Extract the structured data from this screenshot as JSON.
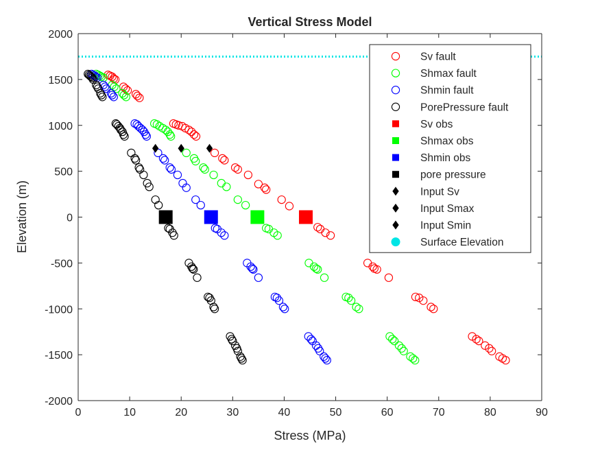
{
  "chart_data": {
    "type": "scatter",
    "title": "Vertical Stress Model",
    "xlabel": "Stress (MPa)",
    "ylabel": "Elevation (m)",
    "xlim": [
      0,
      90
    ],
    "ylim": [
      -2000,
      2000
    ],
    "xticks": [
      0,
      10,
      20,
      30,
      40,
      50,
      60,
      70,
      80,
      90
    ],
    "yticks": [
      -2000,
      -1500,
      -1000,
      -500,
      0,
      500,
      1000,
      1500,
      2000
    ],
    "grid": false,
    "legend_position": "top-right",
    "surface_elevation": 1750,
    "colors": {
      "sv": "#ff0000",
      "shmax": "#00ff00",
      "shmin": "#0000ff",
      "pore": "#000000",
      "surface": "#00e5e5",
      "axis": "#262626"
    },
    "series": [
      {
        "name": "Sv fault",
        "color": "#ff0000",
        "marker": "open-circle",
        "points": [
          [
            5.8,
            1550
          ],
          [
            6.2,
            1540
          ],
          [
            6.6,
            1530
          ],
          [
            6.9,
            1510
          ],
          [
            7.2,
            1500
          ],
          [
            8.8,
            1420
          ],
          [
            9.2,
            1400
          ],
          [
            9.6,
            1380
          ],
          [
            11.2,
            1340
          ],
          [
            11.5,
            1320
          ],
          [
            11.9,
            1300
          ],
          [
            18.5,
            1020
          ],
          [
            19.0,
            1010
          ],
          [
            19.5,
            1000
          ],
          [
            20.2,
            990
          ],
          [
            20.8,
            970
          ],
          [
            21.5,
            950
          ],
          [
            22.0,
            930
          ],
          [
            22.5,
            900
          ],
          [
            22.9,
            880
          ],
          [
            26.5,
            700
          ],
          [
            28.0,
            640
          ],
          [
            28.4,
            620
          ],
          [
            30.5,
            540
          ],
          [
            31.0,
            520
          ],
          [
            33.0,
            460
          ],
          [
            35.0,
            360
          ],
          [
            36.2,
            320
          ],
          [
            36.5,
            300
          ],
          [
            39.5,
            190
          ],
          [
            41.0,
            120
          ],
          [
            46.5,
            -110
          ],
          [
            47.0,
            -130
          ],
          [
            48.0,
            -170
          ],
          [
            49.0,
            -200
          ],
          [
            56.2,
            -500
          ],
          [
            57.2,
            -540
          ],
          [
            57.5,
            -560
          ],
          [
            58.0,
            -570
          ],
          [
            60.3,
            -660
          ],
          [
            65.5,
            -870
          ],
          [
            66.2,
            -880
          ],
          [
            67.0,
            -910
          ],
          [
            68.5,
            -980
          ],
          [
            69.0,
            -1000
          ],
          [
            76.5,
            -1300
          ],
          [
            77.3,
            -1330
          ],
          [
            77.8,
            -1350
          ],
          [
            79.0,
            -1400
          ],
          [
            79.8,
            -1430
          ],
          [
            80.3,
            -1460
          ],
          [
            81.8,
            -1520
          ],
          [
            82.4,
            -1540
          ],
          [
            83.0,
            -1560
          ]
        ]
      },
      {
        "name": "Shmax fault",
        "color": "#00ff00",
        "marker": "open-circle",
        "points": [
          [
            3.5,
            1560
          ],
          [
            3.9,
            1550
          ],
          [
            4.2,
            1540
          ],
          [
            4.5,
            1530
          ],
          [
            4.9,
            1520
          ],
          [
            6.6,
            1440
          ],
          [
            7.0,
            1420
          ],
          [
            7.4,
            1400
          ],
          [
            8.6,
            1350
          ],
          [
            8.9,
            1330
          ],
          [
            9.3,
            1310
          ],
          [
            14.8,
            1020
          ],
          [
            15.3,
            1010
          ],
          [
            15.8,
            990
          ],
          [
            16.4,
            970
          ],
          [
            17.0,
            950
          ],
          [
            17.4,
            930
          ],
          [
            17.8,
            900
          ],
          [
            18.0,
            880
          ],
          [
            21.0,
            700
          ],
          [
            22.5,
            640
          ],
          [
            22.8,
            610
          ],
          [
            24.3,
            540
          ],
          [
            24.6,
            520
          ],
          [
            26.3,
            460
          ],
          [
            27.8,
            370
          ],
          [
            28.8,
            330
          ],
          [
            31.0,
            190
          ],
          [
            32.5,
            130
          ],
          [
            36.5,
            -120
          ],
          [
            37.0,
            -130
          ],
          [
            38.0,
            -170
          ],
          [
            38.7,
            -200
          ],
          [
            44.8,
            -500
          ],
          [
            45.8,
            -540
          ],
          [
            46.2,
            -560
          ],
          [
            46.5,
            -570
          ],
          [
            47.8,
            -660
          ],
          [
            52.0,
            -870
          ],
          [
            52.5,
            -880
          ],
          [
            53.0,
            -910
          ],
          [
            54.0,
            -980
          ],
          [
            54.5,
            -1000
          ],
          [
            60.5,
            -1300
          ],
          [
            61.0,
            -1330
          ],
          [
            61.4,
            -1350
          ],
          [
            62.3,
            -1400
          ],
          [
            62.8,
            -1430
          ],
          [
            63.2,
            -1460
          ],
          [
            64.5,
            -1520
          ],
          [
            65.0,
            -1540
          ],
          [
            65.4,
            -1560
          ]
        ]
      },
      {
        "name": "Shmin fault",
        "color": "#0000ff",
        "marker": "open-circle",
        "points": [
          [
            2.6,
            1560
          ],
          [
            2.9,
            1550
          ],
          [
            3.2,
            1540
          ],
          [
            3.4,
            1530
          ],
          [
            3.7,
            1520
          ],
          [
            4.9,
            1440
          ],
          [
            5.2,
            1420
          ],
          [
            5.5,
            1400
          ],
          [
            6.4,
            1350
          ],
          [
            6.6,
            1330
          ],
          [
            6.9,
            1310
          ],
          [
            11.0,
            1020
          ],
          [
            11.4,
            1010
          ],
          [
            11.7,
            990
          ],
          [
            12.1,
            970
          ],
          [
            12.5,
            950
          ],
          [
            12.8,
            930
          ],
          [
            13.1,
            900
          ],
          [
            13.3,
            880
          ],
          [
            15.5,
            700
          ],
          [
            16.5,
            640
          ],
          [
            16.8,
            620
          ],
          [
            17.8,
            540
          ],
          [
            18.1,
            520
          ],
          [
            19.3,
            460
          ],
          [
            20.3,
            370
          ],
          [
            21.0,
            320
          ],
          [
            22.8,
            190
          ],
          [
            23.8,
            130
          ],
          [
            26.6,
            -120
          ],
          [
            27.0,
            -130
          ],
          [
            27.8,
            -170
          ],
          [
            28.4,
            -200
          ],
          [
            32.8,
            -500
          ],
          [
            33.5,
            -540
          ],
          [
            33.8,
            -560
          ],
          [
            34.0,
            -570
          ],
          [
            35.0,
            -660
          ],
          [
            38.2,
            -870
          ],
          [
            38.6,
            -880
          ],
          [
            39.0,
            -910
          ],
          [
            39.8,
            -980
          ],
          [
            40.1,
            -1000
          ],
          [
            44.7,
            -1300
          ],
          [
            45.2,
            -1330
          ],
          [
            45.5,
            -1350
          ],
          [
            46.2,
            -1400
          ],
          [
            46.6,
            -1430
          ],
          [
            46.9,
            -1460
          ],
          [
            47.7,
            -1520
          ],
          [
            48.0,
            -1540
          ],
          [
            48.3,
            -1560
          ]
        ]
      },
      {
        "name": "PorePressure fault",
        "color": "#000000",
        "marker": "open-circle",
        "points": [
          [
            1.9,
            1560
          ],
          [
            2.1,
            1550
          ],
          [
            2.3,
            1540
          ],
          [
            2.5,
            1530
          ],
          [
            2.7,
            1520
          ],
          [
            2.9,
            1500
          ],
          [
            3.5,
            1440
          ],
          [
            3.7,
            1420
          ],
          [
            3.9,
            1400
          ],
          [
            4.3,
            1350
          ],
          [
            4.5,
            1330
          ],
          [
            4.7,
            1310
          ],
          [
            7.3,
            1020
          ],
          [
            7.5,
            1010
          ],
          [
            7.8,
            990
          ],
          [
            8.1,
            970
          ],
          [
            8.3,
            950
          ],
          [
            8.6,
            930
          ],
          [
            8.8,
            900
          ],
          [
            9.0,
            880
          ],
          [
            10.3,
            700
          ],
          [
            11.0,
            640
          ],
          [
            11.2,
            620
          ],
          [
            11.8,
            540
          ],
          [
            12.0,
            520
          ],
          [
            12.7,
            460
          ],
          [
            13.4,
            370
          ],
          [
            13.8,
            330
          ],
          [
            15.0,
            190
          ],
          [
            15.6,
            130
          ],
          [
            17.5,
            -120
          ],
          [
            17.8,
            -130
          ],
          [
            18.3,
            -170
          ],
          [
            18.6,
            -200
          ],
          [
            21.5,
            -500
          ],
          [
            22.0,
            -540
          ],
          [
            22.2,
            -560
          ],
          [
            22.4,
            -570
          ],
          [
            23.1,
            -660
          ],
          [
            25.2,
            -870
          ],
          [
            25.5,
            -880
          ],
          [
            25.8,
            -910
          ],
          [
            26.3,
            -980
          ],
          [
            26.5,
            -1000
          ],
          [
            29.5,
            -1300
          ],
          [
            29.8,
            -1330
          ],
          [
            30.0,
            -1350
          ],
          [
            30.5,
            -1400
          ],
          [
            30.8,
            -1430
          ],
          [
            31.0,
            -1460
          ],
          [
            31.5,
            -1520
          ],
          [
            31.7,
            -1540
          ],
          [
            31.9,
            -1560
          ]
        ]
      },
      {
        "name": "Sv obs",
        "color": "#ff0000",
        "marker": "filled-square",
        "points": [
          [
            44.2,
            0
          ]
        ]
      },
      {
        "name": "Shmax obs",
        "color": "#00ff00",
        "marker": "filled-square",
        "points": [
          [
            34.8,
            0
          ]
        ]
      },
      {
        "name": "Shmin obs",
        "color": "#0000ff",
        "marker": "filled-square",
        "points": [
          [
            25.8,
            0
          ]
        ]
      },
      {
        "name": "pore pressure",
        "color": "#000000",
        "marker": "filled-square",
        "points": [
          [
            17.0,
            0
          ]
        ]
      },
      {
        "name": "Input Sv",
        "color": "#000000",
        "marker": "filled-diamond",
        "points": [
          [
            25.5,
            750
          ]
        ]
      },
      {
        "name": "Input Smax",
        "color": "#000000",
        "marker": "filled-diamond",
        "points": [
          [
            20.0,
            750
          ]
        ]
      },
      {
        "name": "Input Smin",
        "color": "#000000",
        "marker": "filled-diamond",
        "points": [
          [
            15.0,
            750
          ]
        ]
      },
      {
        "name": "Surface Elevation",
        "color": "#00e5e5",
        "marker": "dotted-line",
        "points": []
      }
    ]
  }
}
